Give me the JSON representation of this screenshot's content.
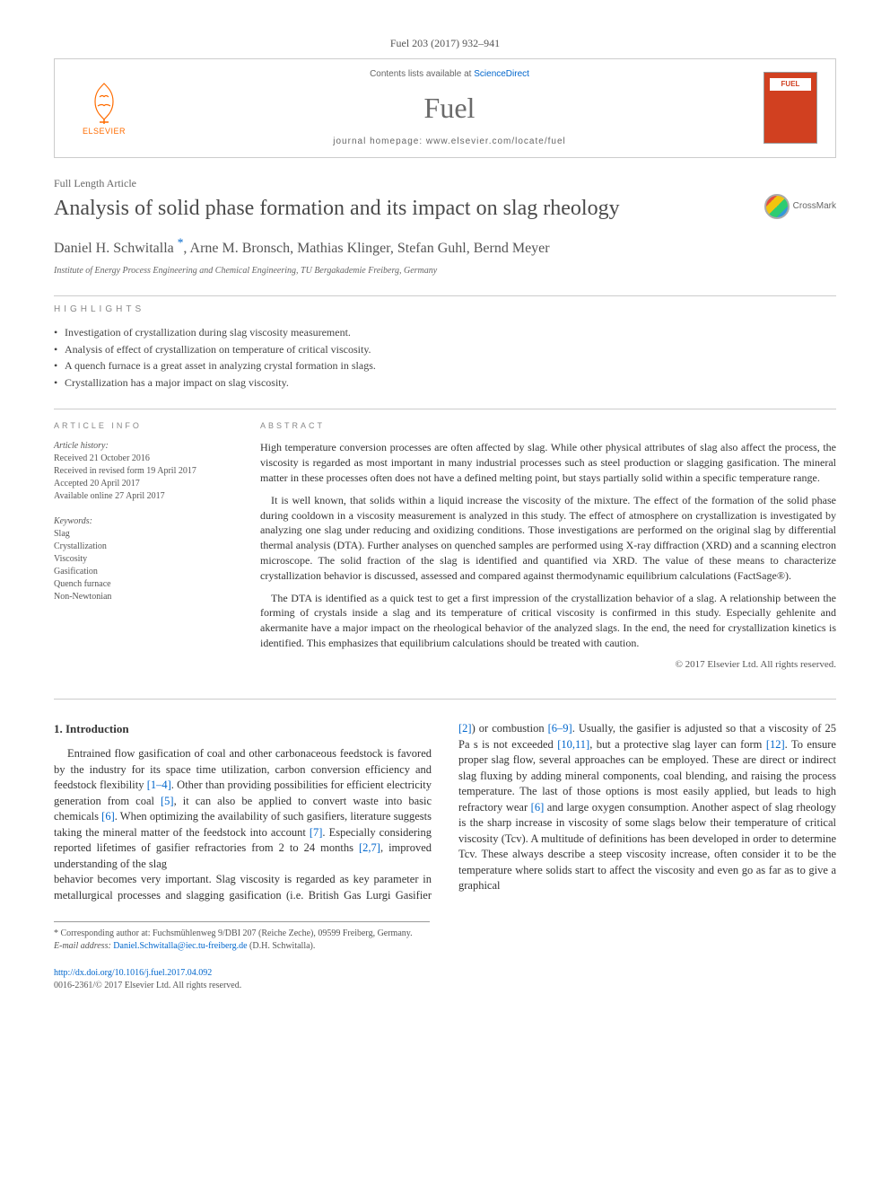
{
  "citation": "Fuel 203 (2017) 932–941",
  "header": {
    "contents_prefix": "Contents lists available at ",
    "contents_link": "ScienceDirect",
    "journal": "Fuel",
    "homepage_prefix": "journal homepage: ",
    "homepage_url": "www.elsevier.com/locate/fuel",
    "publisher": "ELSEVIER",
    "cover_label": "FUEL"
  },
  "article_type": "Full Length Article",
  "title": "Analysis of solid phase formation and its impact on slag rheology",
  "crossmark": "CrossMark",
  "authors_html": "Daniel H. Schwitalla *, Arne M. Bronsch, Mathias Klinger, Stefan Guhl, Bernd Meyer",
  "affiliation": "Institute of Energy Process Engineering and Chemical Engineering, TU Bergakademie Freiberg, Germany",
  "highlights_label": "HIGHLIGHTS",
  "highlights": [
    "Investigation of crystallization during slag viscosity measurement.",
    "Analysis of effect of crystallization on temperature of critical viscosity.",
    "A quench furnace is a great asset in analyzing crystal formation in slags.",
    "Crystallization has a major impact on slag viscosity."
  ],
  "info": {
    "label": "ARTICLE INFO",
    "history_label": "Article history:",
    "history": [
      "Received 21 October 2016",
      "Received in revised form 19 April 2017",
      "Accepted 20 April 2017",
      "Available online 27 April 2017"
    ],
    "keywords_label": "Keywords:",
    "keywords": [
      "Slag",
      "Crystallization",
      "Viscosity",
      "Gasification",
      "Quench furnace",
      "Non-Newtonian"
    ]
  },
  "abstract": {
    "label": "ABSTRACT",
    "paragraphs": [
      "High temperature conversion processes are often affected by slag. While other physical attributes of slag also affect the process, the viscosity is regarded as most important in many industrial processes such as steel production or slagging gasification. The mineral matter in these processes often does not have a defined melting point, but stays partially solid within a specific temperature range.",
      "It is well known, that solids within a liquid increase the viscosity of the mixture. The effect of the formation of the solid phase during cooldown in a viscosity measurement is analyzed in this study. The effect of atmosphere on crystallization is investigated by analyzing one slag under reducing and oxidizing conditions. Those investigations are performed on the original slag by differential thermal analysis (DTA). Further analyses on quenched samples are performed using X-ray diffraction (XRD) and a scanning electron microscope. The solid fraction of the slag is identified and quantified via XRD. The value of these means to characterize crystallization behavior is discussed, assessed and compared against thermodynamic equilibrium calculations (FactSage®).",
      "The DTA is identified as a quick test to get a first impression of the crystallization behavior of a slag. A relationship between the forming of crystals inside a slag and its temperature of critical viscosity is confirmed in this study. Especially gehlenite and akermanite have a major impact on the rheological behavior of the analyzed slags. In the end, the need for crystallization kinetics is identified. This emphasizes that equilibrium calculations should be treated with caution."
    ],
    "copyright": "© 2017 Elsevier Ltd. All rights reserved."
  },
  "body": {
    "section_number": "1.",
    "section_title": "Introduction",
    "col1": "Entrained flow gasification of coal and other carbonaceous feedstock is favored by the industry for its space time utilization, carbon conversion efficiency and feedstock flexibility [1–4]. Other than providing possibilities for efficient electricity generation from coal [5], it can also be applied to convert waste into basic chemicals [6]. When optimizing the availability of such gasifiers, literature suggests taking the mineral matter of the feedstock into account [7]. Especially considering reported lifetimes of gasifier refractories from 2 to 24 months [2,7], improved understanding of the slag",
    "col2": "behavior becomes very important. Slag viscosity is regarded as key parameter in metallurgical processes and slagging gasification (i.e. British Gas Lurgi Gasifier [2]) or combustion [6–9]. Usually, the gasifier is adjusted so that a viscosity of 25 Pa s is not exceeded [10,11], but a protective slag layer can form [12]. To ensure proper slag flow, several approaches can be employed. These are direct or indirect slag fluxing by adding mineral components, coal blending, and raising the process temperature. The last of those options is most easily applied, but leads to high refractory wear [6] and large oxygen consumption. Another aspect of slag rheology is the sharp increase in viscosity of some slags below their temperature of critical viscosity (Tcv). A multitude of definitions has been developed in order to determine Tcv. These always describe a steep viscosity increase, often consider it to be the temperature where solids start to affect the viscosity and even go as far as to give a graphical",
    "refs": {
      "1_4": "[1–4]",
      "5": "[5]",
      "6": "[6]",
      "7": "[7]",
      "2_7": "[2,7]",
      "2": "[2]",
      "6_9": "[6–9]",
      "10_11": "[10,11]",
      "12": "[12]"
    }
  },
  "footnotes": {
    "corresponding": "* Corresponding author at: Fuchsmühlenweg 9/DBI 207 (Reiche Zeche), 09599 Freiberg, Germany.",
    "email_label": "E-mail address: ",
    "email": "Daniel.Schwitalla@iec.tu-freiberg.de",
    "email_suffix": " (D.H. Schwitalla)."
  },
  "footer": {
    "doi": "http://dx.doi.org/10.1016/j.fuel.2017.04.092",
    "issn": "0016-2361/© 2017 Elsevier Ltd. All rights reserved."
  },
  "colors": {
    "link": "#0066cc",
    "elsevier_orange": "#ff6c00",
    "cover_bg": "#d14020"
  }
}
